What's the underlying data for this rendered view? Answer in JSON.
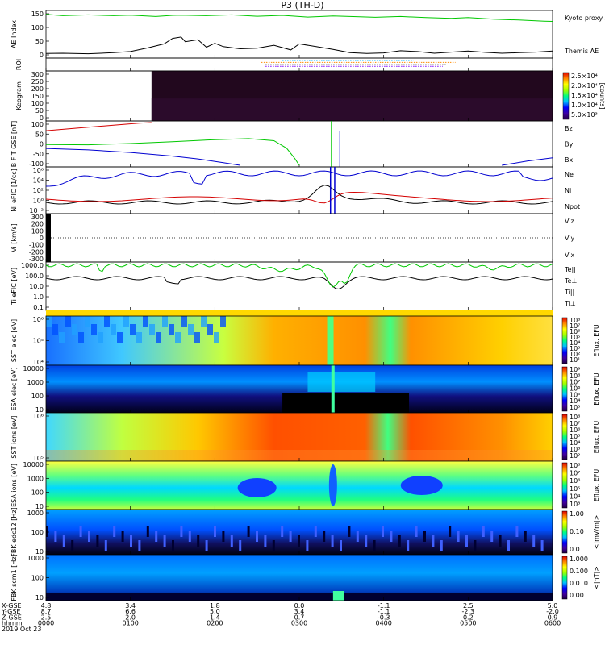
{
  "title": "P3 (TH-D)",
  "colors": {
    "kyoto": "#00c800",
    "black": "#000000",
    "red": "#d40000",
    "green": "#00c800",
    "blue": "#0000d0"
  },
  "chart_data": [
    {
      "panel": "ae",
      "type": "line",
      "ylabel": "AE Index",
      "ylim": [
        0,
        150
      ],
      "yticks": [
        "150",
        "100",
        "50",
        "0"
      ],
      "series": [
        {
          "name": "Kyoto proxy AE",
          "color": "#00c800",
          "x": [
            0,
            0.2,
            0.5,
            0.8,
            1.0,
            1.3,
            1.5,
            1.6,
            1.9,
            2.2,
            2.5,
            2.8,
            3.1,
            3.4,
            3.6,
            3.9,
            4.2,
            4.5,
            4.8,
            5.0,
            5.3,
            5.6,
            5.9,
            6.0
          ],
          "values": [
            148,
            143,
            146,
            143,
            145,
            140,
            144,
            145,
            143,
            146,
            141,
            144,
            138,
            142,
            140,
            137,
            140,
            136,
            133,
            136,
            130,
            127,
            123,
            122
          ]
        },
        {
          "name": "Themis AE",
          "color": "#000000",
          "x": [
            0,
            0.2,
            0.5,
            0.8,
            1.0,
            1.2,
            1.4,
            1.5,
            1.6,
            1.65,
            1.8,
            1.9,
            2.0,
            2.1,
            2.3,
            2.5,
            2.7,
            2.9,
            3.0,
            3.2,
            3.4,
            3.6,
            3.8,
            4.0,
            4.2,
            4.4,
            4.6,
            4.8,
            5.0,
            5.2,
            5.4,
            5.6,
            5.8,
            6.0
          ],
          "values": [
            5,
            6,
            4,
            8,
            12,
            25,
            40,
            60,
            65,
            48,
            55,
            28,
            42,
            30,
            22,
            24,
            35,
            18,
            40,
            30,
            20,
            8,
            5,
            7,
            15,
            12,
            6,
            10,
            14,
            9,
            6,
            8,
            10,
            14
          ]
        }
      ]
    },
    {
      "panel": "roi",
      "type": "bar",
      "ylabel": "ROI",
      "rows": [
        {
          "start": 2.8,
          "end": 4.35,
          "color": "#00b4ff"
        },
        {
          "start": 2.55,
          "end": 4.85,
          "color": "#ff8c00"
        },
        {
          "start": 2.6,
          "end": 4.75,
          "color": "#000000"
        },
        {
          "start": 2.6,
          "end": 4.7,
          "color": "#8000ff"
        }
      ]
    },
    {
      "panel": "keogram",
      "type": "heatmap",
      "ylabel": "Keogram",
      "ylim": [
        0,
        300
      ],
      "yticks": [
        "300",
        "250",
        "200",
        "150",
        "100",
        "50",
        "0"
      ],
      "data_start": 1.25,
      "colorbar": {
        "ticks": [
          "2.5×10⁴",
          "2.0×10⁴",
          "1.5×10⁴",
          "1.0×10⁴",
          "5.0×10³"
        ],
        "unit": "[counts]"
      }
    },
    {
      "panel": "bfield",
      "type": "line",
      "ylabel": "B FIT GSE [nT]",
      "ylim": [
        -100,
        100
      ],
      "yticks": [
        "100",
        "50",
        "0",
        "-50",
        "-100"
      ],
      "series": [
        {
          "name": "Bz",
          "color": "#d40000",
          "x": [
            0,
            0.4,
            0.8,
            1.1,
            1.25
          ],
          "values": [
            62,
            75,
            88,
            97,
            100
          ]
        },
        {
          "name": "By",
          "color": "#00c800",
          "x": [
            0,
            0.5,
            1.0,
            1.5,
            2.0,
            2.4,
            2.7,
            2.85,
            2.95,
            3.0
          ],
          "values": [
            -3,
            -4,
            2,
            10,
            20,
            25,
            15,
            -20,
            -70,
            -100
          ]
        },
        {
          "name": "Bx",
          "color": "#0000d0",
          "x": [
            0,
            0.5,
            1.0,
            1.5,
            1.8,
            2.1,
            2.3
          ],
          "values": [
            -21,
            -28,
            -40,
            -57,
            -70,
            -88,
            -100
          ]
        }
      ]
    },
    {
      "panel": "density",
      "type": "line",
      "ylabel": "Ni eFIC [1/cc]",
      "yticks": [
        "10⁶",
        "10⁴",
        "10²",
        "10⁰",
        "10⁻²"
      ],
      "series": [
        {
          "name": "Ne",
          "color": "#d40000"
        },
        {
          "name": "Ni",
          "color": "#000000"
        },
        {
          "name": "Npot",
          "color": "#0000d0"
        }
      ]
    },
    {
      "panel": "velocity",
      "type": "line",
      "ylabel": "Vi [km/s]",
      "ylim": [
        -300,
        300
      ],
      "yticks": [
        "300",
        "200",
        "100",
        "0",
        "-100",
        "-200",
        "-300"
      ],
      "series": [
        {
          "name": "Viz",
          "color": "#d40000"
        },
        {
          "name": "Viy",
          "color": "#00c800"
        },
        {
          "name": "Vix",
          "color": "#0000d0"
        }
      ]
    },
    {
      "panel": "temperature",
      "type": "line",
      "ylabel": "Ti eFIC [eV]",
      "yticks": [
        "1000.0",
        "100.0",
        "10.0",
        "1.0",
        "0.1"
      ],
      "series": [
        {
          "name": "Te||",
          "color": "#000000"
        },
        {
          "name": "Te⊥",
          "color": "#d40000"
        },
        {
          "name": "Ti||",
          "color": "#00c800"
        },
        {
          "name": "Ti⊥",
          "color": "#0000d0"
        }
      ]
    },
    {
      "panel": "sst_e",
      "type": "heatmap",
      "ylabel": "SST elec [eV]",
      "yticks": [
        "10⁶",
        "10⁵",
        "10⁴"
      ],
      "colorbar": {
        "ticks": [
          "10⁸",
          "10⁷",
          "10⁶",
          "10⁵",
          "10⁴",
          "10³",
          "10²",
          "10¹"
        ],
        "unit": "Eflux, EFU"
      }
    },
    {
      "panel": "esa_e",
      "type": "heatmap",
      "ylabel": "ESA elec [eV]",
      "yticks": [
        "10000",
        "1000",
        "100",
        "10"
      ],
      "colorbar": {
        "ticks": [
          "10⁹",
          "10⁸",
          "10⁷",
          "10⁶",
          "10⁵",
          "10⁴",
          "10³"
        ],
        "unit": "Eflux, EFU"
      }
    },
    {
      "panel": "sst_i",
      "type": "heatmap",
      "ylabel": "SST ions [eV]",
      "yticks": [
        "10⁶",
        "10⁵"
      ],
      "colorbar": {
        "ticks": [
          "10⁸",
          "10⁷",
          "10⁶",
          "10⁵",
          "10⁴",
          "10³",
          "10²"
        ],
        "unit": "Eflux, EFU"
      }
    },
    {
      "panel": "esa_i",
      "type": "heatmap",
      "ylabel": "ESA ions [eV]",
      "yticks": [
        "10000",
        "1000",
        "100",
        "10"
      ],
      "colorbar": {
        "ticks": [
          "10⁸",
          "10⁷",
          "10⁶",
          "10⁵",
          "10⁴",
          "10³"
        ],
        "unit": "Eflux, EFU"
      }
    },
    {
      "panel": "fbk_e",
      "type": "heatmap",
      "ylabel": "FBK edc12 [Hz]",
      "yticks": [
        "1000",
        "100",
        "10"
      ],
      "colorbar": {
        "ticks": [
          "1.00",
          "0.10",
          "0.01"
        ],
        "unit": "<|mV/m|>"
      }
    },
    {
      "panel": "fbk_b",
      "type": "heatmap",
      "ylabel": "FBK scm1 [Hz]",
      "yticks": [
        "1000",
        "100",
        "10"
      ],
      "colorbar": {
        "ticks": [
          "1.000",
          "0.100",
          "0.010",
          "0.001"
        ],
        "unit": "<|nT|>"
      }
    }
  ],
  "xaxis": {
    "rows": [
      "X-GSE",
      "Y-GSE",
      "Z-GSE",
      "hhmm",
      "2019 Oct 23"
    ],
    "ticks": [
      {
        "x": 0,
        "vals": [
          "4.8",
          "8.7",
          "2.5",
          "0000"
        ]
      },
      {
        "x": 1,
        "vals": [
          "3.4",
          "6.6",
          "2.0",
          "0100"
        ]
      },
      {
        "x": 2,
        "vals": [
          "1.8",
          "5.0",
          "1.4",
          "0200"
        ]
      },
      {
        "x": 3,
        "vals": [
          "0.0",
          "3.4",
          "0.7",
          "0300"
        ]
      },
      {
        "x": 4,
        "vals": [
          "-1.1",
          "-1.1",
          "-0.3",
          "0400"
        ]
      },
      {
        "x": 5,
        "vals": [
          "2.5",
          "-2.3",
          "0.2",
          "0500"
        ]
      },
      {
        "x": 6,
        "vals": [
          "5.0",
          "-2.0",
          "0.9",
          "0600"
        ]
      }
    ]
  },
  "legends": {
    "ae": [
      "Kyoto proxy AE",
      "Themis AE"
    ],
    "bfield": [
      "Bz",
      "By",
      "Bx"
    ],
    "density": [
      "Ne",
      "Ni",
      "Npot"
    ],
    "velocity": [
      "Viz",
      "Viy",
      "Vix"
    ],
    "temperature": [
      "Te||",
      "Te⊥",
      "Ti||",
      "Ti⊥"
    ]
  }
}
